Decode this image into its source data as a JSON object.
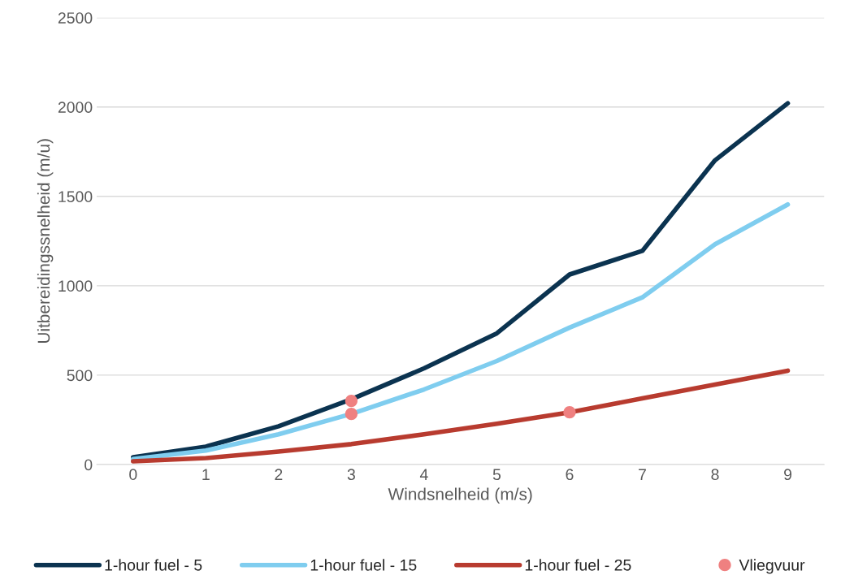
{
  "chart_data": {
    "type": "line",
    "xlabel": "Windsnelheid (m/s)",
    "ylabel": "Uitbereidingssnelheid (m/u)",
    "categories": [
      "0",
      "1",
      "2",
      "3",
      "4",
      "5",
      "6",
      "7",
      "8",
      "9"
    ],
    "series": [
      {
        "name": "1-hour fuel - 5",
        "color": "#0b3350",
        "values": [
          41,
          100,
          214,
          365,
          538,
          734,
          1063,
          1195,
          1702,
          2021
        ]
      },
      {
        "name": "1-hour fuel - 15",
        "color": "#7fcdef",
        "values": [
          30,
          78,
          169,
          283,
          420,
          579,
          766,
          935,
          1232,
          1455
        ]
      },
      {
        "name": "1-hour fuel - 25",
        "color": "#b83b2f",
        "values": [
          18,
          36,
          73,
          114,
          169,
          228,
          292,
          370,
          447,
          525
        ]
      },
      {
        "name": "Vliegvuur",
        "type": "scatter",
        "color": "#ef8080",
        "x": [
          "3",
          "3",
          "6"
        ],
        "marker": "circle",
        "values": [
          356,
          283,
          292
        ]
      }
    ],
    "ylim": [
      0,
      2500
    ],
    "yticks": [
      0,
      500,
      1000,
      1500,
      2000,
      2500
    ],
    "grid": "y",
    "legend": "bottom"
  }
}
